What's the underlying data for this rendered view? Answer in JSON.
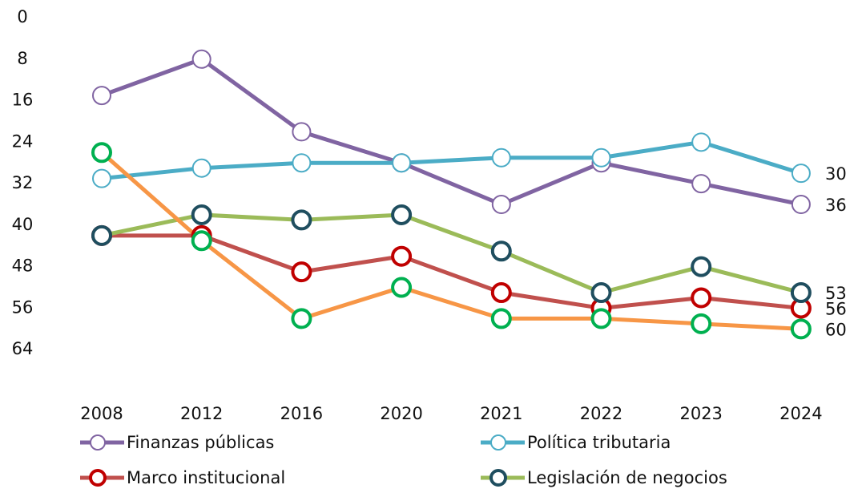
{
  "chart_data": {
    "type": "line",
    "categories": [
      "2008",
      "2012",
      "2016",
      "2020",
      "2021",
      "2022",
      "2023",
      "2024"
    ],
    "ylim": [
      0,
      72
    ],
    "y_inverted": true,
    "yticks": [
      0,
      8,
      16,
      24,
      32,
      40,
      48,
      56,
      64
    ],
    "end_labels": true,
    "series": [
      {
        "name": "Finanzas públicas",
        "color": "#8064a2",
        "marker_color": "#8064a2",
        "values": [
          15,
          8,
          22,
          28,
          36,
          28,
          32,
          36
        ]
      },
      {
        "name": "Política tributaria",
        "color": "#4bacc6",
        "marker_color": "#4bacc6",
        "values": [
          31,
          29,
          28,
          28,
          27,
          27,
          24,
          30
        ]
      },
      {
        "name": "Marco institucional",
        "color": "#c0504d",
        "marker_color": "#c00000",
        "values": [
          42,
          42,
          49,
          46,
          53,
          56,
          54,
          56
        ]
      },
      {
        "name": "Legislación de negocios",
        "color": "#9bbb59",
        "marker_color": "#1f4e5f",
        "values": [
          42,
          38,
          39,
          38,
          45,
          53,
          48,
          53
        ]
      },
      {
        "color": "#f79646",
        "marker_color": "#00b050",
        "values": [
          26,
          43,
          58,
          52,
          58,
          58,
          59,
          60
        ]
      }
    ]
  }
}
